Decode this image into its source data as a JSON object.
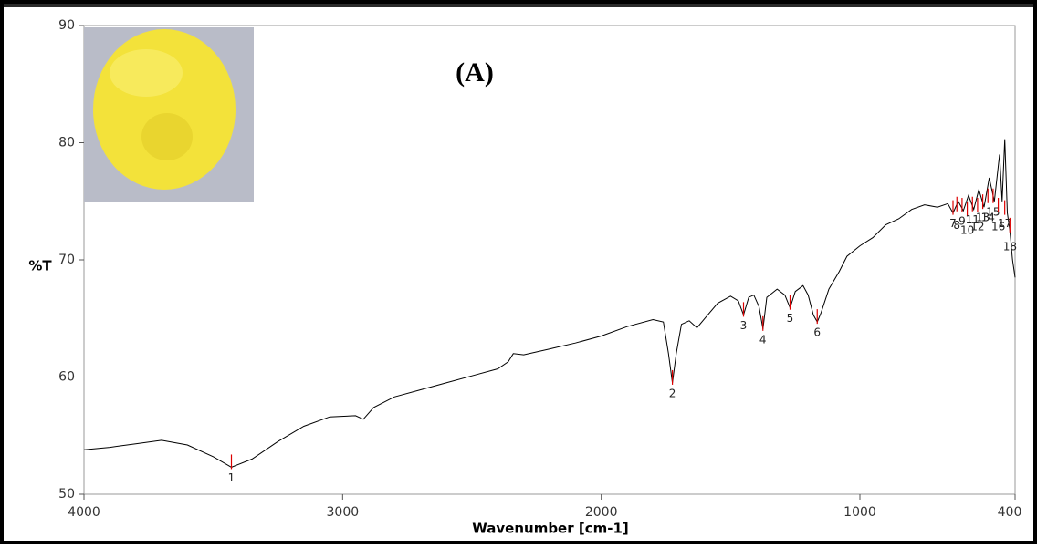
{
  "chart_data": {
    "type": "line",
    "title": "(A)",
    "xlabel": "Wavenumber [cm-1]",
    "ylabel": "%T",
    "color": "#000000",
    "xlim": [
      4000,
      400
    ],
    "xticks": [
      4000,
      3000,
      2000,
      1000,
      400
    ],
    "ylim": [
      50,
      90
    ],
    "yticks": [
      50,
      60,
      70,
      80,
      90
    ],
    "x": [
      4000,
      3900,
      3800,
      3700,
      3600,
      3500,
      3430,
      3350,
      3250,
      3150,
      3050,
      2950,
      2920,
      2880,
      2800,
      2700,
      2600,
      2500,
      2400,
      2360,
      2340,
      2300,
      2200,
      2100,
      2000,
      1900,
      1800,
      1760,
      1740,
      1725,
      1710,
      1690,
      1660,
      1630,
      1600,
      1550,
      1500,
      1470,
      1450,
      1430,
      1410,
      1390,
      1375,
      1360,
      1320,
      1290,
      1270,
      1250,
      1220,
      1200,
      1180,
      1165,
      1150,
      1120,
      1080,
      1050,
      1000,
      950,
      900,
      850,
      800,
      750,
      700,
      660,
      640,
      620,
      600,
      580,
      560,
      540,
      520,
      500,
      480,
      460,
      450,
      440,
      430,
      420,
      410,
      400
    ],
    "values": [
      53.8,
      54.0,
      54.3,
      54.6,
      54.2,
      53.2,
      52.3,
      53.0,
      54.5,
      55.8,
      56.6,
      56.7,
      56.4,
      57.4,
      58.3,
      58.9,
      59.5,
      60.1,
      60.7,
      61.3,
      62.0,
      61.9,
      62.4,
      62.9,
      63.5,
      64.3,
      64.9,
      64.7,
      62.0,
      59.5,
      62.0,
      64.5,
      64.8,
      64.2,
      65.0,
      66.3,
      66.9,
      66.5,
      65.3,
      66.8,
      67.0,
      66.0,
      64.1,
      66.8,
      67.5,
      67.0,
      65.9,
      67.3,
      67.8,
      67.0,
      65.3,
      64.7,
      65.5,
      67.5,
      69.0,
      70.3,
      71.2,
      71.9,
      73.0,
      73.5,
      74.3,
      74.7,
      74.5,
      74.8,
      74.0,
      75.0,
      74.2,
      75.5,
      74.3,
      76.0,
      74.5,
      77.0,
      75.0,
      79.0,
      75.0,
      80.3,
      74.0,
      72.5,
      70.0,
      68.5
    ],
    "peaks": {
      "labels": [
        1,
        2,
        3,
        4,
        5,
        6,
        7,
        8,
        9,
        10,
        11,
        12,
        13,
        14,
        15,
        16,
        17,
        18
      ],
      "x": [
        3430,
        1725,
        1450,
        1375,
        1270,
        1165,
        640,
        625,
        605,
        585,
        565,
        545,
        525,
        505,
        485,
        465,
        440,
        420
      ],
      "y": [
        52.3,
        59.5,
        65.3,
        64.1,
        65.9,
        64.7,
        74.0,
        74.3,
        74.2,
        73.9,
        74.3,
        74.2,
        74.5,
        75.0,
        75.0,
        74.2,
        74.0,
        72.5
      ]
    }
  }
}
